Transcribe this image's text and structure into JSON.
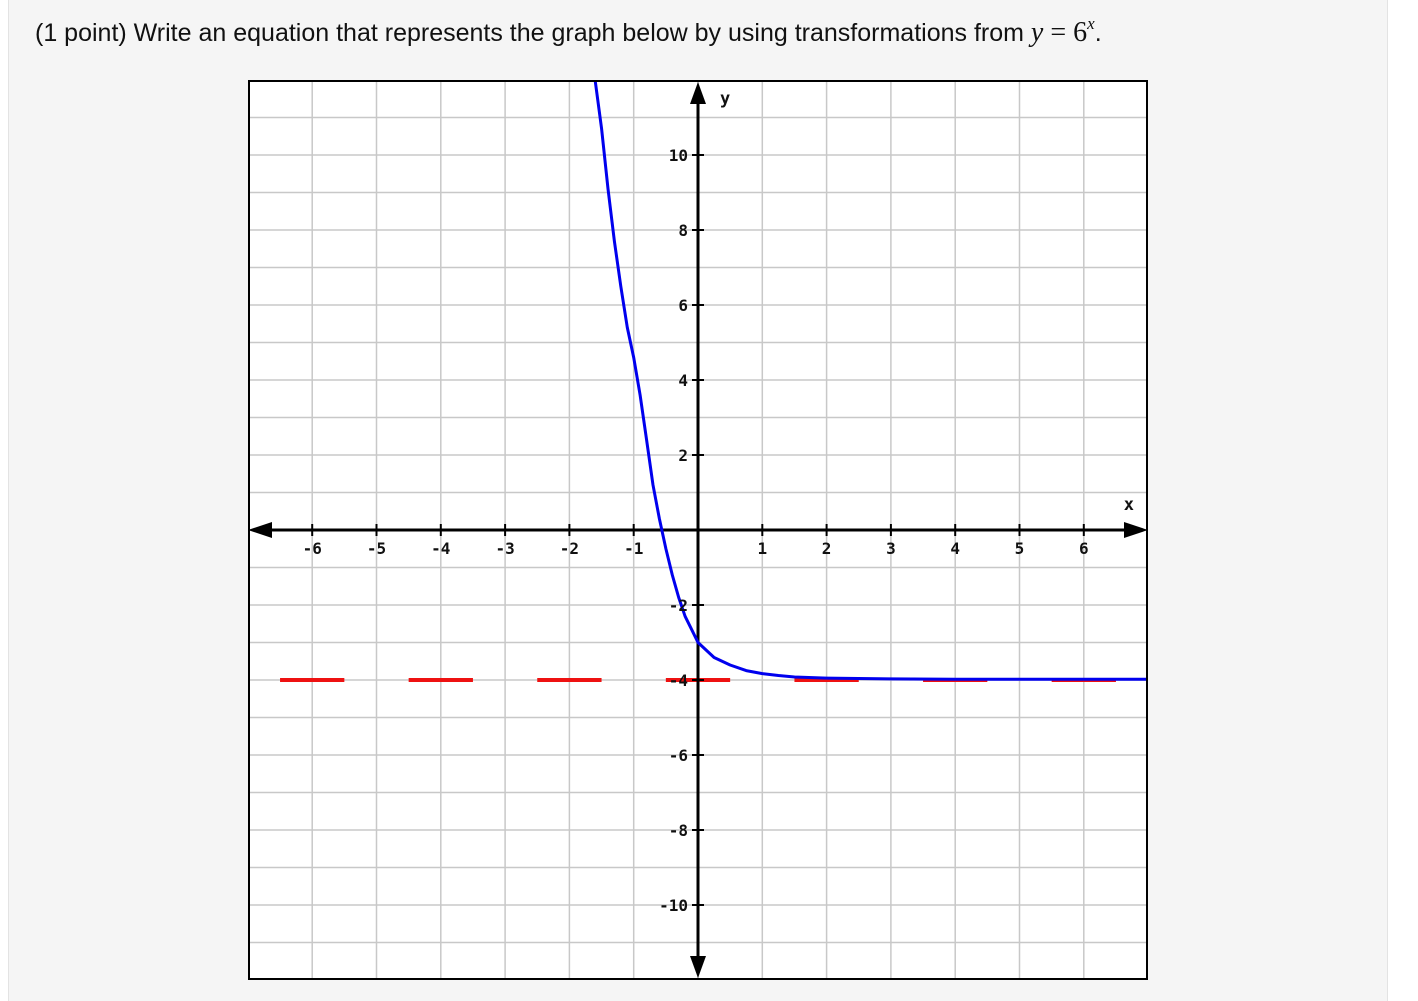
{
  "question": {
    "prefix": "(1 point) Write an equation that represents the graph below by using transformations from",
    "math_var": "y",
    "math_eq": " = 6",
    "math_exp": "x",
    "suffix": "."
  },
  "chart_data": {
    "type": "line",
    "xlabel": "x",
    "ylabel": "y",
    "xlim": [
      -7,
      7
    ],
    "ylim": [
      -12,
      12
    ],
    "x_grid_step": 1,
    "y_grid_step": 1,
    "grid": true,
    "x_tick_labels": [
      "-6",
      "-5",
      "-4",
      "-3",
      "-2",
      "-1",
      "1",
      "2",
      "3",
      "4",
      "5",
      "6"
    ],
    "x_tick_values": [
      -6,
      -5,
      -4,
      -3,
      -2,
      -1,
      1,
      2,
      3,
      4,
      5,
      6
    ],
    "y_tick_labels": [
      "10",
      "8",
      "6",
      "4",
      "2",
      "-2",
      "-4",
      "-6",
      "-8",
      "-10"
    ],
    "y_tick_values": [
      10,
      8,
      6,
      4,
      2,
      -2,
      -4,
      -6,
      -8,
      -10
    ],
    "curve": {
      "color": "#0000ee",
      "points": [
        [
          -1.6,
          12
        ],
        [
          -1.5,
          10.7
        ],
        [
          -1.4,
          9.1
        ],
        [
          -1.3,
          7.7
        ],
        [
          -1.2,
          6.5
        ],
        [
          -1.1,
          5.4
        ],
        [
          -1.0,
          4.6
        ],
        [
          -0.9,
          3.6
        ],
        [
          -0.8,
          2.4
        ],
        [
          -0.7,
          1.2
        ],
        [
          -0.6,
          0.3
        ],
        [
          -0.5,
          -0.5
        ],
        [
          -0.4,
          -1.2
        ],
        [
          -0.3,
          -1.8
        ],
        [
          -0.2,
          -2.3
        ],
        [
          -0.1,
          -2.65
        ],
        [
          0,
          -3.0
        ],
        [
          0.25,
          -3.4
        ],
        [
          0.5,
          -3.6
        ],
        [
          0.75,
          -3.75
        ],
        [
          1.0,
          -3.83
        ],
        [
          1.25,
          -3.88
        ],
        [
          1.5,
          -3.92
        ],
        [
          2.0,
          -3.95
        ],
        [
          3.0,
          -3.97
        ],
        [
          4.0,
          -3.98
        ],
        [
          5.0,
          -3.98
        ],
        [
          6.0,
          -3.98
        ],
        [
          7.0,
          -3.98
        ]
      ]
    },
    "asymptote": {
      "y": -4,
      "color": "#ee1111",
      "dashes": [
        [
          -6.5,
          -5.5
        ],
        [
          -4.5,
          -3.5
        ],
        [
          -2.5,
          -1.5
        ],
        [
          -0.5,
          0.5
        ],
        [
          1.5,
          2.5
        ],
        [
          3.5,
          4.5
        ],
        [
          5.5,
          6.5
        ]
      ]
    },
    "colors": {
      "grid": "#c8c8c8",
      "axis": "#000000",
      "border": "#000000"
    }
  }
}
